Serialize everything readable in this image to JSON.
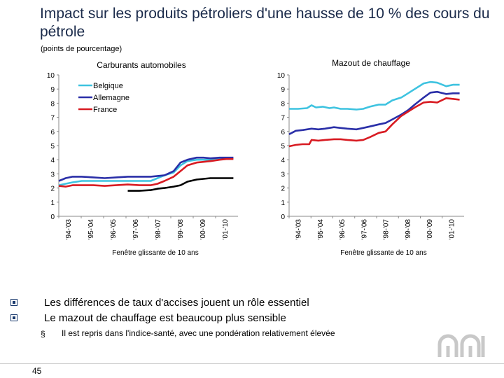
{
  "slide": {
    "title": "Impact sur les produits pétroliers d'une hausse de 10 % des cours du pétrole",
    "subtitle": "(points de pourcentage)",
    "bullets": [
      "Les différences de taux d'accises jouent un rôle essentiel",
      "Le mazout de chauffage est beaucoup plus sensible"
    ],
    "sub_bullet_mark": "§",
    "sub_bullet": "Il est repris dans l'indice-santé, avec une pondération relativement élevée",
    "page_number": "45"
  },
  "colors": {
    "belgique": "#3ec3e0",
    "allemagne": "#2a2fa8",
    "france": "#d81b22",
    "black": "#000000",
    "accent": "#1a3a6e"
  },
  "chart_data": [
    {
      "type": "line",
      "title": "Carburants automobiles",
      "xlabel": "Fenêtre glissante de 10 ans",
      "ylabel": "",
      "ylim": [
        0,
        10
      ],
      "yticks": [
        "0",
        "1",
        "2",
        "3",
        "4",
        "5",
        "6",
        "7",
        "8",
        "9",
        "10"
      ],
      "xticks": [
        "'94-'03",
        "'95-'04",
        "'96-'05",
        "'97-'06",
        "'98-'07",
        "'99-'08",
        "'00-'09",
        "'01-'10"
      ],
      "xlim": [
        0,
        7.8
      ],
      "legend": "top-left",
      "series": [
        {
          "name": "Belgique",
          "color_key": "belgique",
          "legend": true,
          "x": [
            0,
            0.3,
            0.6,
            1,
            1.5,
            2,
            2.5,
            3,
            3.5,
            4,
            4.3,
            4.6,
            5,
            5.3,
            5.6,
            6,
            6.3,
            6.6,
            7,
            7.3,
            7.6
          ],
          "y": [
            2.2,
            2.3,
            2.4,
            2.5,
            2.5,
            2.5,
            2.5,
            2.5,
            2.5,
            2.5,
            2.7,
            2.9,
            3.1,
            3.6,
            3.9,
            4.0,
            4.0,
            4.0,
            4.1,
            4.1,
            4.1
          ]
        },
        {
          "name": "Allemagne",
          "color_key": "allemagne",
          "legend": true,
          "x": [
            0,
            0.3,
            0.6,
            1,
            1.5,
            2,
            2.5,
            3,
            3.5,
            4,
            4.3,
            4.6,
            5,
            5.3,
            5.6,
            6,
            6.3,
            6.6,
            7,
            7.3,
            7.6
          ],
          "y": [
            2.5,
            2.7,
            2.8,
            2.8,
            2.75,
            2.7,
            2.75,
            2.8,
            2.8,
            2.8,
            2.85,
            2.9,
            3.2,
            3.8,
            4.0,
            4.15,
            4.15,
            4.1,
            4.15,
            4.15,
            4.15
          ]
        },
        {
          "name": "France",
          "color_key": "france",
          "legend": true,
          "x": [
            0,
            0.3,
            0.6,
            1,
            1.5,
            2,
            2.5,
            3,
            3.5,
            4,
            4.3,
            4.6,
            5,
            5.3,
            5.6,
            6,
            6.3,
            6.6,
            7,
            7.3,
            7.6
          ],
          "y": [
            2.15,
            2.1,
            2.2,
            2.2,
            2.2,
            2.15,
            2.2,
            2.25,
            2.2,
            2.2,
            2.3,
            2.5,
            2.8,
            3.2,
            3.6,
            3.8,
            3.85,
            3.9,
            4.0,
            4.05,
            4.05
          ]
        },
        {
          "name": "",
          "color_key": "black",
          "legend": false,
          "x": [
            3.0,
            3.5,
            4.0,
            4.3,
            4.6,
            5.0,
            5.3,
            5.6,
            6.0,
            6.3,
            6.6,
            7.0,
            7.6
          ],
          "y": [
            1.8,
            1.8,
            1.85,
            1.95,
            2.0,
            2.1,
            2.2,
            2.45,
            2.6,
            2.65,
            2.7,
            2.7,
            2.7
          ]
        }
      ]
    },
    {
      "type": "line",
      "title": "Mazout de chauffage",
      "xlabel": "Fenêtre glissante de 10 ans",
      "ylabel": "",
      "ylim": [
        0,
        10
      ],
      "yticks": [
        "0",
        "1",
        "2",
        "3",
        "4",
        "5",
        "6",
        "7",
        "8",
        "9",
        "10"
      ],
      "xticks": [
        "'94-'03",
        "'95-'04",
        "'96-'05",
        "'97-'06",
        "'98-'07",
        "'99-'08",
        "'00-'09",
        "'01-'10"
      ],
      "xlim": [
        0,
        7.8
      ],
      "legend": "none",
      "series": [
        {
          "name": "Belgique",
          "color_key": "belgique",
          "x": [
            0,
            0.4,
            0.8,
            1,
            1.2,
            1.5,
            1.8,
            2,
            2.3,
            2.6,
            3,
            3.3,
            3.6,
            4,
            4.3,
            4.6,
            5,
            5.3,
            5.6,
            6,
            6.3,
            6.6,
            7,
            7.3,
            7.6
          ],
          "y": [
            7.6,
            7.6,
            7.65,
            7.85,
            7.7,
            7.75,
            7.65,
            7.7,
            7.6,
            7.6,
            7.55,
            7.6,
            7.75,
            7.9,
            7.9,
            8.2,
            8.4,
            8.7,
            9.0,
            9.4,
            9.5,
            9.45,
            9.2,
            9.3,
            9.3
          ]
        },
        {
          "name": "Allemagne",
          "color_key": "allemagne",
          "x": [
            0,
            0.3,
            0.6,
            1,
            1.3,
            1.6,
            2,
            2.3,
            2.6,
            3,
            3.3,
            3.6,
            4,
            4.3,
            4.6,
            5,
            5.3,
            5.6,
            6,
            6.3,
            6.6,
            7,
            7.3,
            7.6
          ],
          "y": [
            5.8,
            6.05,
            6.1,
            6.2,
            6.15,
            6.2,
            6.3,
            6.25,
            6.2,
            6.15,
            6.25,
            6.35,
            6.5,
            6.6,
            6.85,
            7.2,
            7.5,
            7.9,
            8.4,
            8.75,
            8.8,
            8.65,
            8.7,
            8.7
          ]
        },
        {
          "name": "France",
          "color_key": "france",
          "x": [
            0,
            0.3,
            0.6,
            0.9,
            1,
            1.3,
            1.6,
            2,
            2.3,
            2.6,
            3,
            3.3,
            3.6,
            4,
            4.3,
            4.6,
            5,
            5.3,
            5.6,
            6,
            6.3,
            6.6,
            7,
            7.3,
            7.6
          ],
          "y": [
            4.95,
            5.05,
            5.1,
            5.1,
            5.4,
            5.35,
            5.4,
            5.45,
            5.45,
            5.4,
            5.35,
            5.4,
            5.6,
            5.9,
            6.0,
            6.5,
            7.1,
            7.4,
            7.7,
            8.05,
            8.1,
            8.05,
            8.35,
            8.3,
            8.25
          ]
        }
      ]
    }
  ]
}
